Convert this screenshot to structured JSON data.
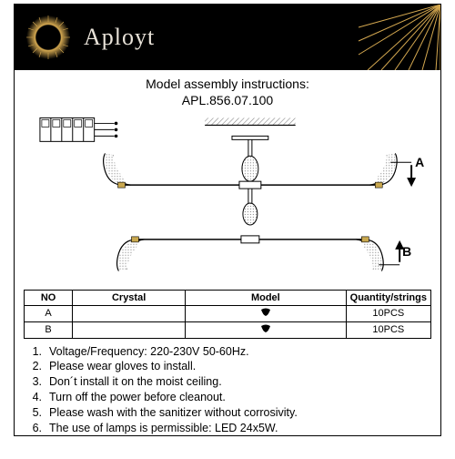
{
  "brand": "Aployt",
  "title_line1": "Model assembly instructions:",
  "title_line2": "APL.856.07.100",
  "colors": {
    "header_bg": "#000000",
    "brand_text": "#e8e2d8",
    "sun_glow": "#d4a850",
    "line": "#000000",
    "hatch": "#808080",
    "paper": "#ffffff"
  },
  "parts_table": {
    "headers": [
      "NO",
      "Crystal",
      "Model",
      "Quantity/strings"
    ],
    "rows": [
      [
        "A",
        "",
        "",
        "10PCS"
      ],
      [
        "B",
        "",
        "",
        "10PCS"
      ]
    ],
    "col_widths": [
      "12%",
      "28%",
      "40%",
      "20%"
    ]
  },
  "diagram_labels": {
    "A": "A",
    "B": "B"
  },
  "notes": [
    "Voltage/Frequency: 220-230V 50-60Hz.",
    "Please wear gloves to install.",
    "Don´t install it on the moist ceiling.",
    "Turn off the power before cleanout.",
    "Please wash with the sanitizer without corrosivity.",
    "The use of lamps is permissible: LED 24x5W."
  ]
}
